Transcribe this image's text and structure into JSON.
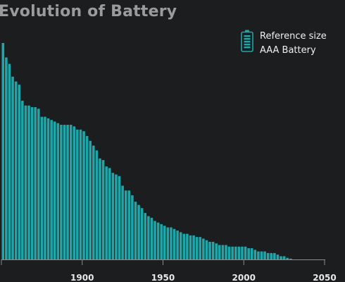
{
  "chart_data": {
    "type": "bar",
    "title": "Evolution of Battery",
    "legend": {
      "placement": "top-right",
      "icon": "battery-icon",
      "lines": [
        "Reference size",
        "AAA Battery"
      ]
    },
    "x_start": 1851,
    "x_step": 2,
    "xlim": [
      1850,
      2050
    ],
    "xticks": [
      1900,
      1950,
      2000,
      2050
    ],
    "values": [
      135,
      126,
      122,
      114,
      111,
      109,
      99,
      96,
      96,
      95,
      95,
      94,
      89,
      89,
      88,
      87,
      86,
      85,
      84,
      84,
      84,
      84,
      83,
      81,
      81,
      80,
      77,
      74,
      71,
      68,
      63,
      62,
      58,
      57,
      54,
      53,
      52,
      46,
      43,
      43,
      40,
      36,
      34,
      32,
      29,
      27,
      26,
      24,
      23,
      22,
      21,
      20,
      20,
      19,
      18,
      17,
      16,
      16,
      15,
      15,
      14,
      14,
      13,
      12,
      11,
      11,
      10,
      9,
      9,
      9,
      8,
      8,
      8,
      8,
      8,
      8,
      7,
      7,
      6,
      5,
      5,
      5,
      4,
      4,
      4,
      3,
      2,
      2,
      1,
      0.5
    ],
    "colors": {
      "bar": "#1fa6a8",
      "background": "#1c1d1f",
      "axis": "#8a8b8d"
    }
  }
}
